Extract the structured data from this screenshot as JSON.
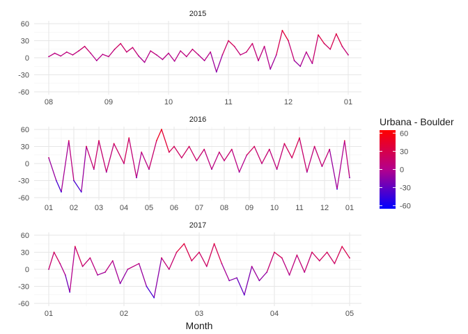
{
  "chart_data": {
    "type": "line",
    "xlabel": "Month",
    "legend": {
      "title": "Urbana - Boulder",
      "placement": "right",
      "ticks": [
        60,
        30,
        0,
        -30,
        -60
      ],
      "colors": {
        "low": "#0000ff",
        "mid": "#b4008c",
        "high": "#ff0000"
      },
      "range": [
        -65,
        65
      ]
    },
    "facets": [
      {
        "title": "2015",
        "ylim": [
          -60,
          60
        ],
        "y_ticks": [
          60,
          30,
          0,
          -30,
          -60
        ],
        "x_ticks": [
          "08",
          "09",
          "10",
          "11",
          "12",
          "01"
        ],
        "x_range": [
          0,
          5
        ],
        "points": [
          [
            0,
            2
          ],
          [
            0.1,
            8
          ],
          [
            0.2,
            3
          ],
          [
            0.3,
            10
          ],
          [
            0.4,
            5
          ],
          [
            0.5,
            12
          ],
          [
            0.6,
            20
          ],
          [
            0.7,
            8
          ],
          [
            0.8,
            -5
          ],
          [
            0.9,
            6
          ],
          [
            1.0,
            2
          ],
          [
            1.1,
            15
          ],
          [
            1.2,
            25
          ],
          [
            1.3,
            10
          ],
          [
            1.4,
            18
          ],
          [
            1.5,
            3
          ],
          [
            1.6,
            -8
          ],
          [
            1.7,
            12
          ],
          [
            1.8,
            5
          ],
          [
            1.9,
            -3
          ],
          [
            2.0,
            8
          ],
          [
            2.1,
            -6
          ],
          [
            2.2,
            12
          ],
          [
            2.3,
            2
          ],
          [
            2.4,
            15
          ],
          [
            2.5,
            5
          ],
          [
            2.6,
            -5
          ],
          [
            2.7,
            10
          ],
          [
            2.8,
            -25
          ],
          [
            2.9,
            5
          ],
          [
            3.0,
            30
          ],
          [
            3.1,
            20
          ],
          [
            3.2,
            5
          ],
          [
            3.3,
            10
          ],
          [
            3.4,
            25
          ],
          [
            3.5,
            -5
          ],
          [
            3.6,
            20
          ],
          [
            3.7,
            -20
          ],
          [
            3.8,
            5
          ],
          [
            3.9,
            48
          ],
          [
            4.0,
            30
          ],
          [
            4.1,
            -5
          ],
          [
            4.2,
            -15
          ],
          [
            4.3,
            10
          ],
          [
            4.4,
            -10
          ],
          [
            4.5,
            40
          ],
          [
            4.6,
            25
          ],
          [
            4.7,
            15
          ],
          [
            4.8,
            42
          ],
          [
            4.9,
            20
          ],
          [
            5.0,
            5
          ]
        ]
      },
      {
        "title": "2016",
        "ylim": [
          -60,
          60
        ],
        "y_ticks": [
          60,
          30,
          0,
          -30,
          -60
        ],
        "x_ticks": [
          "01",
          "02",
          "03",
          "04",
          "05",
          "06",
          "07",
          "08",
          "09",
          "10",
          "11",
          "12",
          "01"
        ],
        "x_range": [
          0,
          12
        ],
        "points": [
          [
            0,
            10
          ],
          [
            0.3,
            -30
          ],
          [
            0.5,
            -50
          ],
          [
            0.8,
            40
          ],
          [
            1.0,
            -30
          ],
          [
            1.3,
            -50
          ],
          [
            1.5,
            30
          ],
          [
            1.8,
            -10
          ],
          [
            2.0,
            40
          ],
          [
            2.3,
            -15
          ],
          [
            2.6,
            35
          ],
          [
            3.0,
            0
          ],
          [
            3.2,
            45
          ],
          [
            3.5,
            -25
          ],
          [
            3.7,
            20
          ],
          [
            4.0,
            -10
          ],
          [
            4.3,
            40
          ],
          [
            4.5,
            60
          ],
          [
            4.8,
            20
          ],
          [
            5.0,
            30
          ],
          [
            5.3,
            10
          ],
          [
            5.6,
            30
          ],
          [
            5.9,
            5
          ],
          [
            6.2,
            25
          ],
          [
            6.5,
            -10
          ],
          [
            6.8,
            20
          ],
          [
            7.0,
            5
          ],
          [
            7.3,
            25
          ],
          [
            7.6,
            -15
          ],
          [
            7.9,
            15
          ],
          [
            8.2,
            30
          ],
          [
            8.5,
            0
          ],
          [
            8.8,
            25
          ],
          [
            9.1,
            -10
          ],
          [
            9.4,
            35
          ],
          [
            9.7,
            10
          ],
          [
            10.0,
            45
          ],
          [
            10.3,
            -15
          ],
          [
            10.6,
            30
          ],
          [
            10.9,
            -5
          ],
          [
            11.2,
            25
          ],
          [
            11.5,
            -45
          ],
          [
            11.8,
            40
          ],
          [
            12.0,
            -25
          ]
        ]
      },
      {
        "title": "2017",
        "ylim": [
          -60,
          60
        ],
        "y_ticks": [
          60,
          30,
          0,
          -30,
          -60
        ],
        "x_ticks": [
          "01",
          "02",
          "03",
          "04",
          "05"
        ],
        "x_range": [
          0,
          4
        ],
        "points": [
          [
            0,
            0
          ],
          [
            0.07,
            30
          ],
          [
            0.15,
            10
          ],
          [
            0.22,
            -10
          ],
          [
            0.28,
            -40
          ],
          [
            0.35,
            40
          ],
          [
            0.45,
            5
          ],
          [
            0.55,
            20
          ],
          [
            0.65,
            -10
          ],
          [
            0.75,
            -5
          ],
          [
            0.85,
            15
          ],
          [
            0.95,
            -25
          ],
          [
            1.05,
            0
          ],
          [
            1.2,
            10
          ],
          [
            1.3,
            -30
          ],
          [
            1.4,
            -50
          ],
          [
            1.5,
            20
          ],
          [
            1.6,
            0
          ],
          [
            1.7,
            30
          ],
          [
            1.8,
            45
          ],
          [
            1.9,
            15
          ],
          [
            2.0,
            30
          ],
          [
            2.1,
            5
          ],
          [
            2.2,
            45
          ],
          [
            2.3,
            10
          ],
          [
            2.4,
            -20
          ],
          [
            2.5,
            -15
          ],
          [
            2.6,
            -45
          ],
          [
            2.7,
            5
          ],
          [
            2.8,
            -20
          ],
          [
            2.9,
            -5
          ],
          [
            3.0,
            30
          ],
          [
            3.1,
            20
          ],
          [
            3.2,
            -10
          ],
          [
            3.3,
            25
          ],
          [
            3.4,
            -5
          ],
          [
            3.5,
            30
          ],
          [
            3.6,
            15
          ],
          [
            3.7,
            30
          ],
          [
            3.8,
            10
          ],
          [
            3.9,
            40
          ],
          [
            4.0,
            20
          ]
        ]
      }
    ]
  }
}
